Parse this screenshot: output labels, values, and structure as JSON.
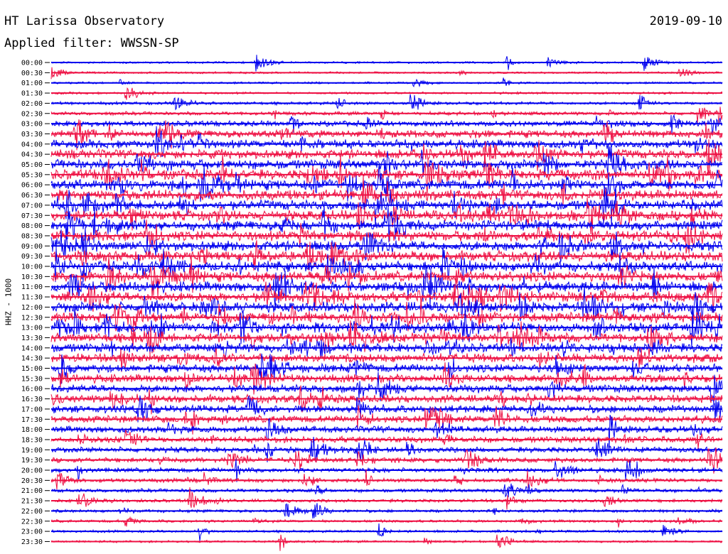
{
  "header": {
    "title": "HT Larissa Observatory",
    "date": "2019-09-10",
    "filter": "Applied filter: WWSSN-SP"
  },
  "colors": {
    "trace_a": "#0000ee",
    "trace_b": "#ee1144",
    "background": "#ffffff"
  },
  "chart_data": {
    "type": "line",
    "description_type": "helicorder",
    "ylabel": "HHZ - 1000",
    "row_labels": [
      "00:00",
      "00:30",
      "01:00",
      "01:30",
      "02:00",
      "02:30",
      "03:00",
      "03:30",
      "04:00",
      "04:30",
      "05:00",
      "05:30",
      "06:00",
      "06:30",
      "07:00",
      "07:30",
      "08:00",
      "08:30",
      "09:00",
      "09:30",
      "10:00",
      "10:30",
      "11:00",
      "11:30",
      "12:00",
      "12:30",
      "13:00",
      "13:30",
      "14:00",
      "14:30",
      "15:00",
      "15:30",
      "16:00",
      "16:30",
      "17:00",
      "17:30",
      "18:00",
      "18:30",
      "19:00",
      "19:30",
      "20:00",
      "20:30",
      "21:00",
      "21:30",
      "22:00",
      "22:30",
      "23:00",
      "23:30"
    ],
    "row_colors": [
      "blue",
      "red"
    ],
    "noise_level": [
      0.8,
      0.8,
      0.8,
      0.9,
      1.2,
      1.4,
      2.2,
      3.0,
      3.3,
      3.6,
      3.8,
      4.0,
      4.0,
      4.0,
      4.0,
      4.0,
      4.0,
      4.0,
      4.0,
      4.0,
      4.0,
      4.0,
      4.0,
      4.0,
      4.0,
      3.8,
      3.8,
      3.6,
      3.5,
      3.4,
      3.3,
      3.2,
      3.1,
      3.0,
      3.0,
      2.8,
      2.6,
      2.4,
      2.2,
      2.0,
      1.8,
      1.6,
      1.4,
      1.3,
      1.2,
      1.1,
      1.0,
      0.9
    ]
  }
}
